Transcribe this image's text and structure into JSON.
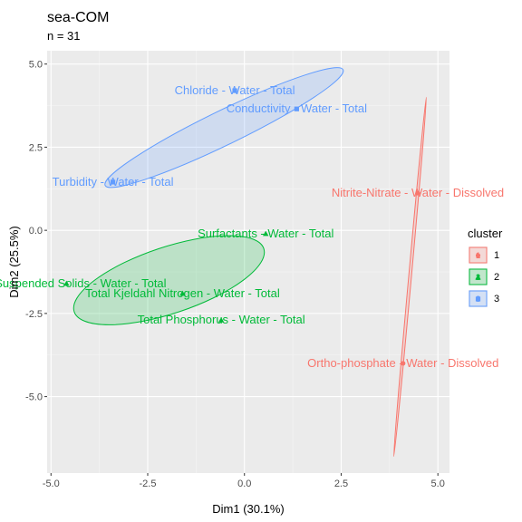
{
  "chart_data": {
    "type": "scatter",
    "title": "sea-COM",
    "subtitle": "n = 31",
    "xlabel": "Dim1 (30.1%)",
    "ylabel": "Dim2 (25.5%)",
    "xlim": [
      -5.1,
      5.3
    ],
    "ylim": [
      -7.3,
      5.4
    ],
    "xticks": [
      -5.0,
      -2.5,
      0.0,
      2.5,
      5.0
    ],
    "xtick_labels": [
      "-5.0",
      "-2.5",
      "0.0",
      "2.5",
      "5.0"
    ],
    "yticks": [
      -5.0,
      -2.5,
      0.0,
      2.5,
      5.0
    ],
    "ytick_labels": [
      "-5.0",
      "-2.5",
      "0.0",
      "2.5",
      "5.0"
    ],
    "grid": true,
    "legend": {
      "title": "cluster",
      "position": "right",
      "items": [
        {
          "label": "1",
          "color": "#F8766D",
          "shape": "circle"
        },
        {
          "label": "2",
          "color": "#00BA38",
          "shape": "triangle"
        },
        {
          "label": "3",
          "color": "#619CFF",
          "shape": "square"
        }
      ]
    },
    "series": [
      {
        "cluster": "1",
        "color": "#F8766D",
        "shape": "circle",
        "points": [
          {
            "label": "Nitrite-Nitrate - Water - Dissolved",
            "x": 4.48,
            "y": 1.12
          },
          {
            "label": "Ortho-phosphate - Water - Dissolved",
            "x": 4.1,
            "y": -4.0
          }
        ]
      },
      {
        "cluster": "2",
        "color": "#00BA38",
        "shape": "triangle",
        "points": [
          {
            "label": "Surfactants - Water - Total",
            "x": 0.55,
            "y": -0.1
          },
          {
            "label": "Total Suspended Solids - Water - Total",
            "x": -4.6,
            "y": -1.6
          },
          {
            "label": "Total Kjeldahl Nitrogen - Water - Total",
            "x": -1.6,
            "y": -1.9
          },
          {
            "label": "Total Phosphorus - Water - Total",
            "x": -0.6,
            "y": -2.7
          }
        ]
      },
      {
        "cluster": "3",
        "color": "#619CFF",
        "shape": "square",
        "points": [
          {
            "label": "Chloride - Water - Total",
            "x": -0.25,
            "y": 4.2
          },
          {
            "label": "Conductivity - Water - Total",
            "x": 1.35,
            "y": 3.65
          },
          {
            "label": "Turbidity - Water - Total",
            "x": -3.4,
            "y": 1.45
          }
        ]
      }
    ],
    "ellipses": [
      {
        "cluster": "1",
        "color": "#F8766D",
        "center": [
          4.28,
          -1.3
        ],
        "axis_end1": [
          4.7,
          4.0
        ],
        "axis_end2": [
          3.86,
          -6.8
        ],
        "minor_half_width": 0.03
      },
      {
        "cluster": "2",
        "color": "#00BA38",
        "center": [
          -1.95,
          -1.5
        ],
        "axis_end1": [
          -4.4,
          -2.45
        ],
        "axis_end2": [
          0.5,
          -0.55
        ],
        "minor_half_width": 0.98
      },
      {
        "cluster": "3",
        "color": "#619CFF",
        "center": [
          -0.54,
          3.09
        ],
        "axis_end1": [
          -3.6,
          1.35
        ],
        "axis_end2": [
          2.55,
          4.83
        ],
        "minor_half_width": 0.5
      }
    ]
  }
}
